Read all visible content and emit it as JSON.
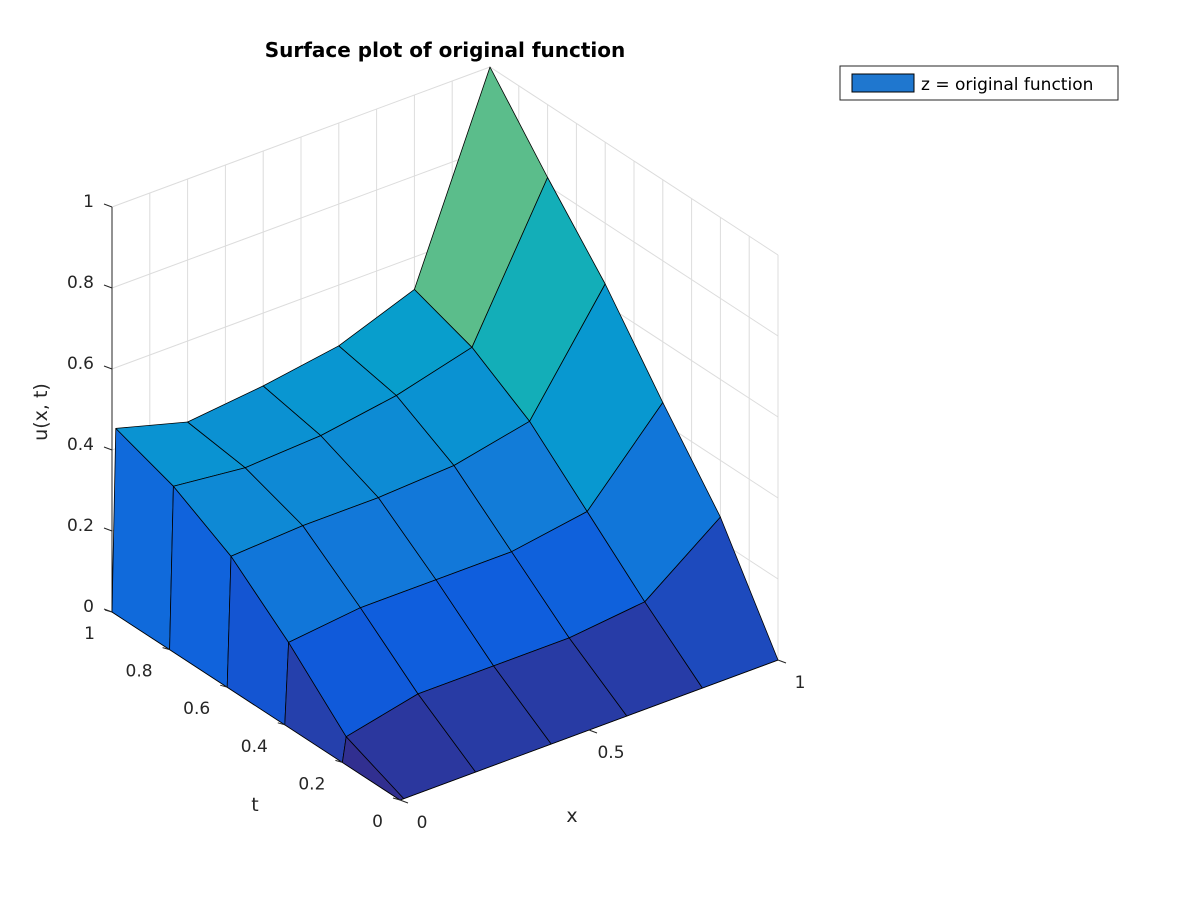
{
  "chart_data": {
    "type": "surface",
    "title": "Surface plot of original function",
    "xlabel": "x",
    "ylabel": "t",
    "zlabel": "u(x, t)",
    "xlim": [
      0,
      1
    ],
    "ylim": [
      0,
      1
    ],
    "zlim": [
      0,
      1
    ],
    "xticks": [
      "0",
      "0.5",
      "1"
    ],
    "yticks": [
      "0",
      "0.2",
      "0.4",
      "0.6",
      "0.8",
      "1"
    ],
    "zticks": [
      "0",
      "0.2",
      "0.4",
      "0.6",
      "0.8",
      "1"
    ],
    "grid": true,
    "colormap": "parula",
    "legend": {
      "position": "top-right",
      "entries": [
        {
          "label": "z = original function",
          "color": "#1f77cf"
        }
      ]
    },
    "x": [
      0,
      0.01,
      0.2,
      0.4,
      0.6,
      0.8,
      1.0
    ],
    "t": [
      0,
      0.2,
      0.4,
      0.6,
      0.8,
      1.0
    ],
    "z_rows": [
      [
        0,
        0,
        0,
        0,
        0,
        0,
        0
      ],
      [
        0,
        0.06,
        0.1,
        0.1,
        0.1,
        0.12,
        0.26
      ],
      [
        0,
        0.2,
        0.22,
        0.22,
        0.22,
        0.25,
        0.45
      ],
      [
        0,
        0.32,
        0.33,
        0.33,
        0.34,
        0.38,
        0.65
      ],
      [
        0,
        0.4,
        0.38,
        0.39,
        0.42,
        0.47,
        0.82
      ],
      [
        0,
        0.45,
        0.4,
        0.42,
        0.45,
        0.52,
        1.0
      ]
    ],
    "edge_color": "#000000"
  }
}
